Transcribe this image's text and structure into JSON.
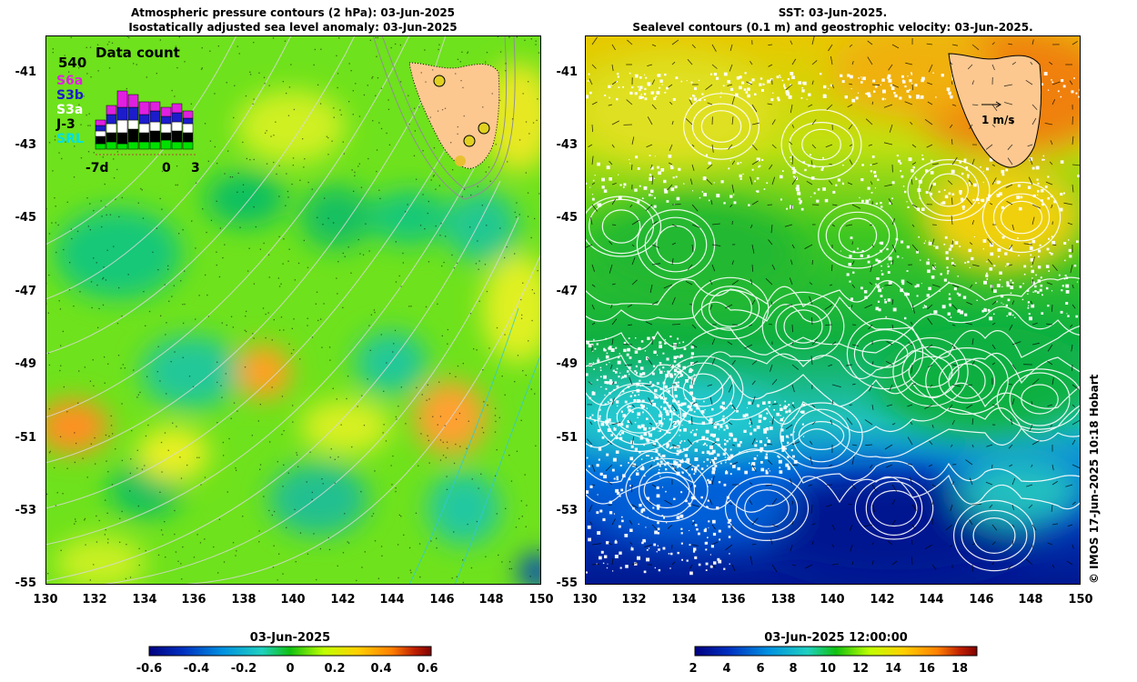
{
  "left_panel": {
    "title_line1": "Atmospheric pressure contours (2 hPa): 03-Jun-2025",
    "title_line2": "Isostatically adjusted sea level anomaly: 03-Jun-2025",
    "y_ticks": [
      "-41",
      "-43",
      "-45",
      "-47",
      "-49",
      "-51",
      "-53",
      "-55"
    ],
    "x_ticks": [
      "130",
      "132",
      "134",
      "136",
      "138",
      "140",
      "142",
      "144",
      "146",
      "148",
      "150"
    ],
    "inset": {
      "title": "Data count",
      "max_count": "540",
      "missions": [
        {
          "label": "S6a",
          "color": "#e020e0"
        },
        {
          "label": "S3b",
          "color": "#1c1ccc"
        },
        {
          "label": "S3a",
          "color": "#ffffff"
        },
        {
          "label": "J-3",
          "color": "#000000"
        },
        {
          "label": "SRL",
          "color": "#00e0e0"
        }
      ],
      "x_left": "-7d",
      "x_mid": "0",
      "x_right": "3"
    },
    "colorbar": {
      "title": "03-Jun-2025",
      "ticks": [
        "-0.6",
        "-0.4",
        "-0.2",
        "0",
        "0.2",
        "0.4",
        "0.6"
      ],
      "colors": [
        "#000080",
        "#0030c0",
        "#0090e0",
        "#20d0c0",
        "#00c000",
        "#c0ff00",
        "#ffd000",
        "#ff8000",
        "#c02000",
        "#800000"
      ]
    }
  },
  "right_panel": {
    "title_line1": "SST: 03-Jun-2025.",
    "title_line2": "Sealevel contours (0.1 m) and geostrophic velocity: 03-Jun-2025.",
    "y_ticks": [
      "-41",
      "-43",
      "-45",
      "-47",
      "-49",
      "-51",
      "-53",
      "-55"
    ],
    "x_ticks": [
      "130",
      "132",
      "134",
      "136",
      "138",
      "140",
      "142",
      "144",
      "146",
      "148",
      "150"
    ],
    "velocity_label": "1 m/s",
    "colorbar": {
      "title": "03-Jun-2025 12:00:00",
      "ticks": [
        "2",
        "4",
        "6",
        "8",
        "10",
        "12",
        "14",
        "16",
        "18"
      ],
      "colors": [
        "#000080",
        "#0030c0",
        "#0090e0",
        "#20d0c0",
        "#00c000",
        "#c0ff00",
        "#ffd000",
        "#ff8000",
        "#c02000",
        "#800000"
      ]
    }
  },
  "credit": "© IMOS 17-Jun-2025 10:18 Hobart"
}
